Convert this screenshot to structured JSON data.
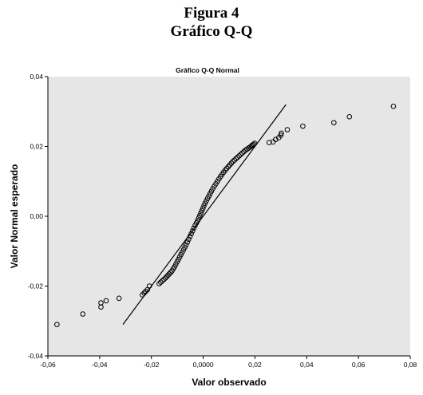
{
  "figure": {
    "caption_line1": "Figura 4",
    "caption_line2": "Gráfico Q-Q"
  },
  "chart_data": {
    "type": "scatter",
    "title": "Gráfico Q-Q Normal",
    "xlabel": "Valor observado",
    "ylabel": "Valor Normal esperado",
    "xlim": [
      -0.06,
      0.08
    ],
    "ylim": [
      -0.04,
      0.04
    ],
    "x_ticks": [
      "-0,06",
      "-0,04",
      "-0,02",
      "0,0000",
      "0,02",
      "0,04",
      "0,06",
      "0,08"
    ],
    "y_ticks": [
      "-0,04",
      "-0,02",
      "0,00",
      "0,02",
      "0,04"
    ],
    "x_tick_values": [
      -0.06,
      -0.04,
      -0.02,
      0.0,
      0.02,
      0.04,
      0.06,
      0.08
    ],
    "y_tick_values": [
      -0.04,
      -0.02,
      0.0,
      0.02,
      0.04
    ],
    "plot_background": "#e6e6e6",
    "marker_color": "#000000",
    "grid": false,
    "reference_line": {
      "x": [
        -0.031,
        0.032
      ],
      "y": [
        -0.031,
        0.032
      ]
    },
    "points": {
      "x": [
        -0.0565,
        -0.0465,
        -0.0395,
        -0.0395,
        -0.0375,
        -0.0325,
        -0.0235,
        -0.0228,
        -0.0222,
        -0.0215,
        -0.0208,
        -0.017,
        -0.0164,
        -0.0158,
        -0.0152,
        -0.0146,
        -0.0141,
        -0.0136,
        -0.0131,
        -0.0126,
        -0.0121,
        -0.0116,
        -0.0111,
        -0.0106,
        -0.0101,
        -0.0096,
        -0.0091,
        -0.0086,
        -0.0081,
        -0.0076,
        -0.0071,
        -0.0066,
        -0.0061,
        -0.0056,
        -0.0051,
        -0.0046,
        -0.0041,
        -0.0036,
        -0.0031,
        -0.0026,
        -0.0021,
        -0.0017,
        -0.0013,
        -0.0009,
        -0.0005,
        -0.0001,
        0.0003,
        0.0007,
        0.0012,
        0.0017,
        0.0022,
        0.0027,
        0.0032,
        0.0037,
        0.0043,
        0.0049,
        0.0055,
        0.0061,
        0.0067,
        0.0073,
        0.0079,
        0.0085,
        0.0091,
        0.0097,
        0.0103,
        0.0109,
        0.0115,
        0.0121,
        0.0127,
        0.0133,
        0.0139,
        0.0145,
        0.0151,
        0.0157,
        0.0163,
        0.0169,
        0.0175,
        0.0181,
        0.0186,
        0.019,
        0.0195,
        0.0199,
        0.0255,
        0.027,
        0.028,
        0.0292,
        0.03,
        0.0302,
        0.0325,
        0.0385,
        0.0505,
        0.0565,
        0.0735
      ],
      "y": [
        -0.031,
        -0.028,
        -0.026,
        -0.0248,
        -0.0242,
        -0.0235,
        -0.0225,
        -0.022,
        -0.0215,
        -0.021,
        -0.02,
        -0.0193,
        -0.0189,
        -0.0185,
        -0.0181,
        -0.0177,
        -0.0173,
        -0.0169,
        -0.0165,
        -0.0161,
        -0.0157,
        -0.0151,
        -0.0145,
        -0.0138,
        -0.0131,
        -0.0124,
        -0.0117,
        -0.011,
        -0.0103,
        -0.0096,
        -0.0089,
        -0.0082,
        -0.0074,
        -0.0066,
        -0.0058,
        -0.005,
        -0.0042,
        -0.0034,
        -0.0026,
        -0.0019,
        -0.0012,
        -0.0005,
        0.0002,
        0.0009,
        0.0016,
        0.0023,
        0.003,
        0.0037,
        0.0044,
        0.0051,
        0.0058,
        0.0065,
        0.0072,
        0.0079,
        0.0086,
        0.0093,
        0.01,
        0.0107,
        0.0114,
        0.012,
        0.0126,
        0.0132,
        0.0137,
        0.0142,
        0.0147,
        0.0152,
        0.0157,
        0.0161,
        0.0165,
        0.0169,
        0.0173,
        0.0177,
        0.0181,
        0.0185,
        0.0189,
        0.0192,
        0.0195,
        0.0198,
        0.0201,
        0.0204,
        0.0206,
        0.0209,
        0.0211,
        0.0213,
        0.022,
        0.0225,
        0.0232,
        0.0238,
        0.0248,
        0.0258,
        0.0268,
        0.0285,
        0.0315
      ]
    }
  }
}
